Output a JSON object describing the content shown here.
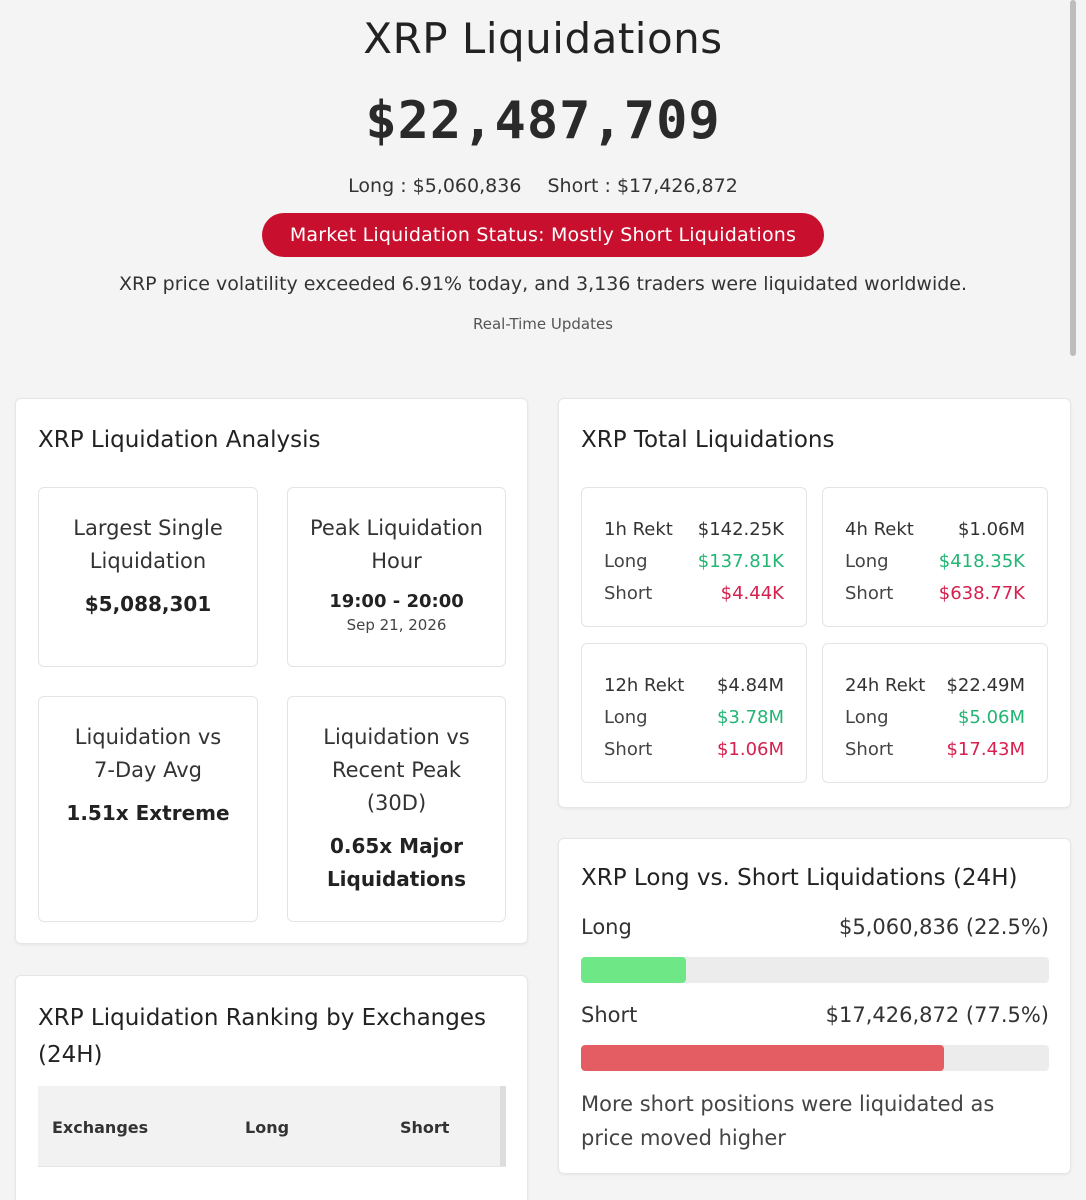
{
  "hero": {
    "title": "XRP Liquidations",
    "total": "$22,487,709",
    "long_text": "Long : $5,060,836",
    "short_text": "Short : $17,426,872",
    "status": "Market Liquidation Status: Mostly Short Liquidations",
    "note": "XRP price volatility exceeded 6.91% today, and 3,136 traders were liquidated worldwide.",
    "realtime": "Real-Time Updates"
  },
  "analysis": {
    "title": "XRP Liquidation Analysis",
    "stats": [
      {
        "label": "Largest Single Liquidation",
        "value": "$5,088,301"
      },
      {
        "label": "Peak Liquidation Hour",
        "value": "19:00 - 20:00",
        "sub": "Sep 21, 2026"
      },
      {
        "label": "Liquidation vs 7-Day Avg",
        "value": "1.51x Extreme"
      },
      {
        "label": "Liquidation vs Recent Peak (30D)",
        "value": "0.65x Major Liquidations"
      }
    ]
  },
  "ranking": {
    "title": "XRP Liquidation Ranking by Exchanges (24H)",
    "columns": [
      "Exchanges",
      "Long",
      "Short"
    ]
  },
  "totals": {
    "title": "XRP Total Liquidations",
    "boxes": [
      {
        "period": "1h Rekt",
        "total": "$142.25K",
        "long_label": "Long",
        "long": "$137.81K",
        "short_label": "Short",
        "short": "$4.44K"
      },
      {
        "period": "4h Rekt",
        "total": "$1.06M",
        "long_label": "Long",
        "long": "$418.35K",
        "short_label": "Short",
        "short": "$638.77K"
      },
      {
        "period": "12h Rekt",
        "total": "$4.84M",
        "long_label": "Long",
        "long": "$3.78M",
        "short_label": "Short",
        "short": "$1.06M"
      },
      {
        "period": "24h Rekt",
        "total": "$22.49M",
        "long_label": "Long",
        "long": "$5.06M",
        "short_label": "Short",
        "short": "$17.43M"
      }
    ]
  },
  "ratio": {
    "title": "XRP Long vs. Short Liquidations (24H)",
    "long_label": "Long",
    "long_value": "$5,060,836 (22.5%)",
    "long_pct": 22.5,
    "long_color": "#6ee787",
    "short_label": "Short",
    "short_value": "$17,426,872 (77.5%)",
    "short_pct": 77.5,
    "short_color": "#e35d62",
    "message": "More short positions were liquidated as price moved higher"
  },
  "colors": {
    "status_pill": "#c8102e",
    "positive": "#22b573",
    "negative": "#d6204e"
  }
}
